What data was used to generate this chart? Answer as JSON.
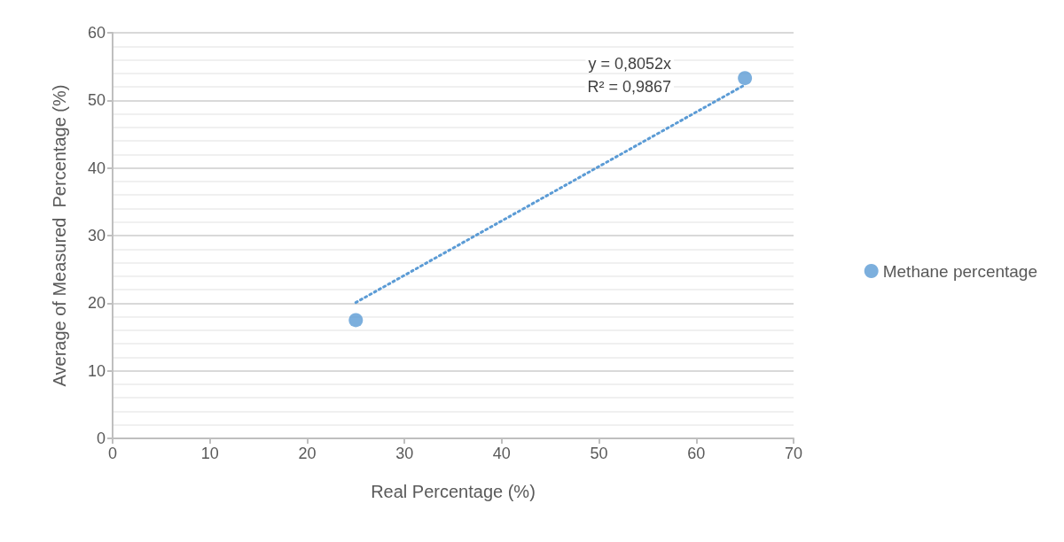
{
  "chart_data": {
    "type": "scatter",
    "xlabel": "Real Percentage (%)",
    "ylabel": "Average of Measured  Percentage (%)",
    "series": [
      {
        "name": "Methane percentage",
        "type": "scatter",
        "color": "#5b9bd5",
        "marker": "circle",
        "values": [
          17.5,
          53.3
        ]
      },
      {
        "type": "line",
        "color": "#5b9bd5",
        "marker": "none",
        "line_style": "dotted",
        "values": [
          20.1,
          52.3
        ]
      }
    ],
    "x": [
      25,
      65
    ],
    "annotations": [
      "y = 0,8052x",
      "R² = 0,9867"
    ],
    "xlim": [
      0,
      70
    ],
    "xticks": [
      0,
      10,
      20,
      30,
      40,
      50,
      60,
      70
    ],
    "ylim": [
      0,
      60
    ],
    "yticks": [
      0,
      10,
      20,
      30,
      40,
      50,
      60
    ],
    "grid": "y",
    "legend": "right"
  }
}
